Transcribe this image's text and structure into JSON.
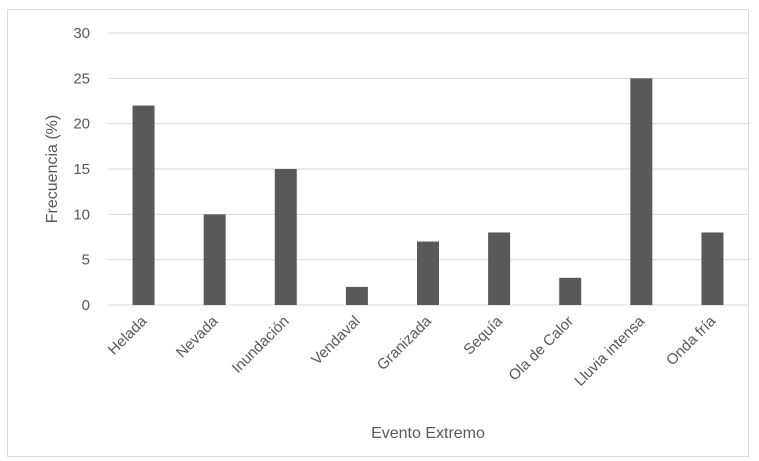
{
  "chart_data": {
    "type": "bar",
    "categories": [
      "Helada",
      "Nevada",
      "Inundación",
      "Vendaval",
      "Granizada",
      "Sequía",
      "Ola de Calor",
      "Lluvia intensa",
      "Onda fría"
    ],
    "values": [
      22,
      10,
      15,
      2,
      7,
      8,
      3,
      25,
      8
    ],
    "title": "",
    "xlabel": "Evento Extremo",
    "ylabel": "Frecuencia (%)",
    "ylim": [
      0,
      30
    ],
    "yticks": [
      "0",
      "5",
      "10",
      "15",
      "20",
      "25",
      "30"
    ],
    "grid": true,
    "legend": "none",
    "colors": {
      "bar": "#595959",
      "grid": "#d9d9d9",
      "text": "#595959"
    }
  }
}
